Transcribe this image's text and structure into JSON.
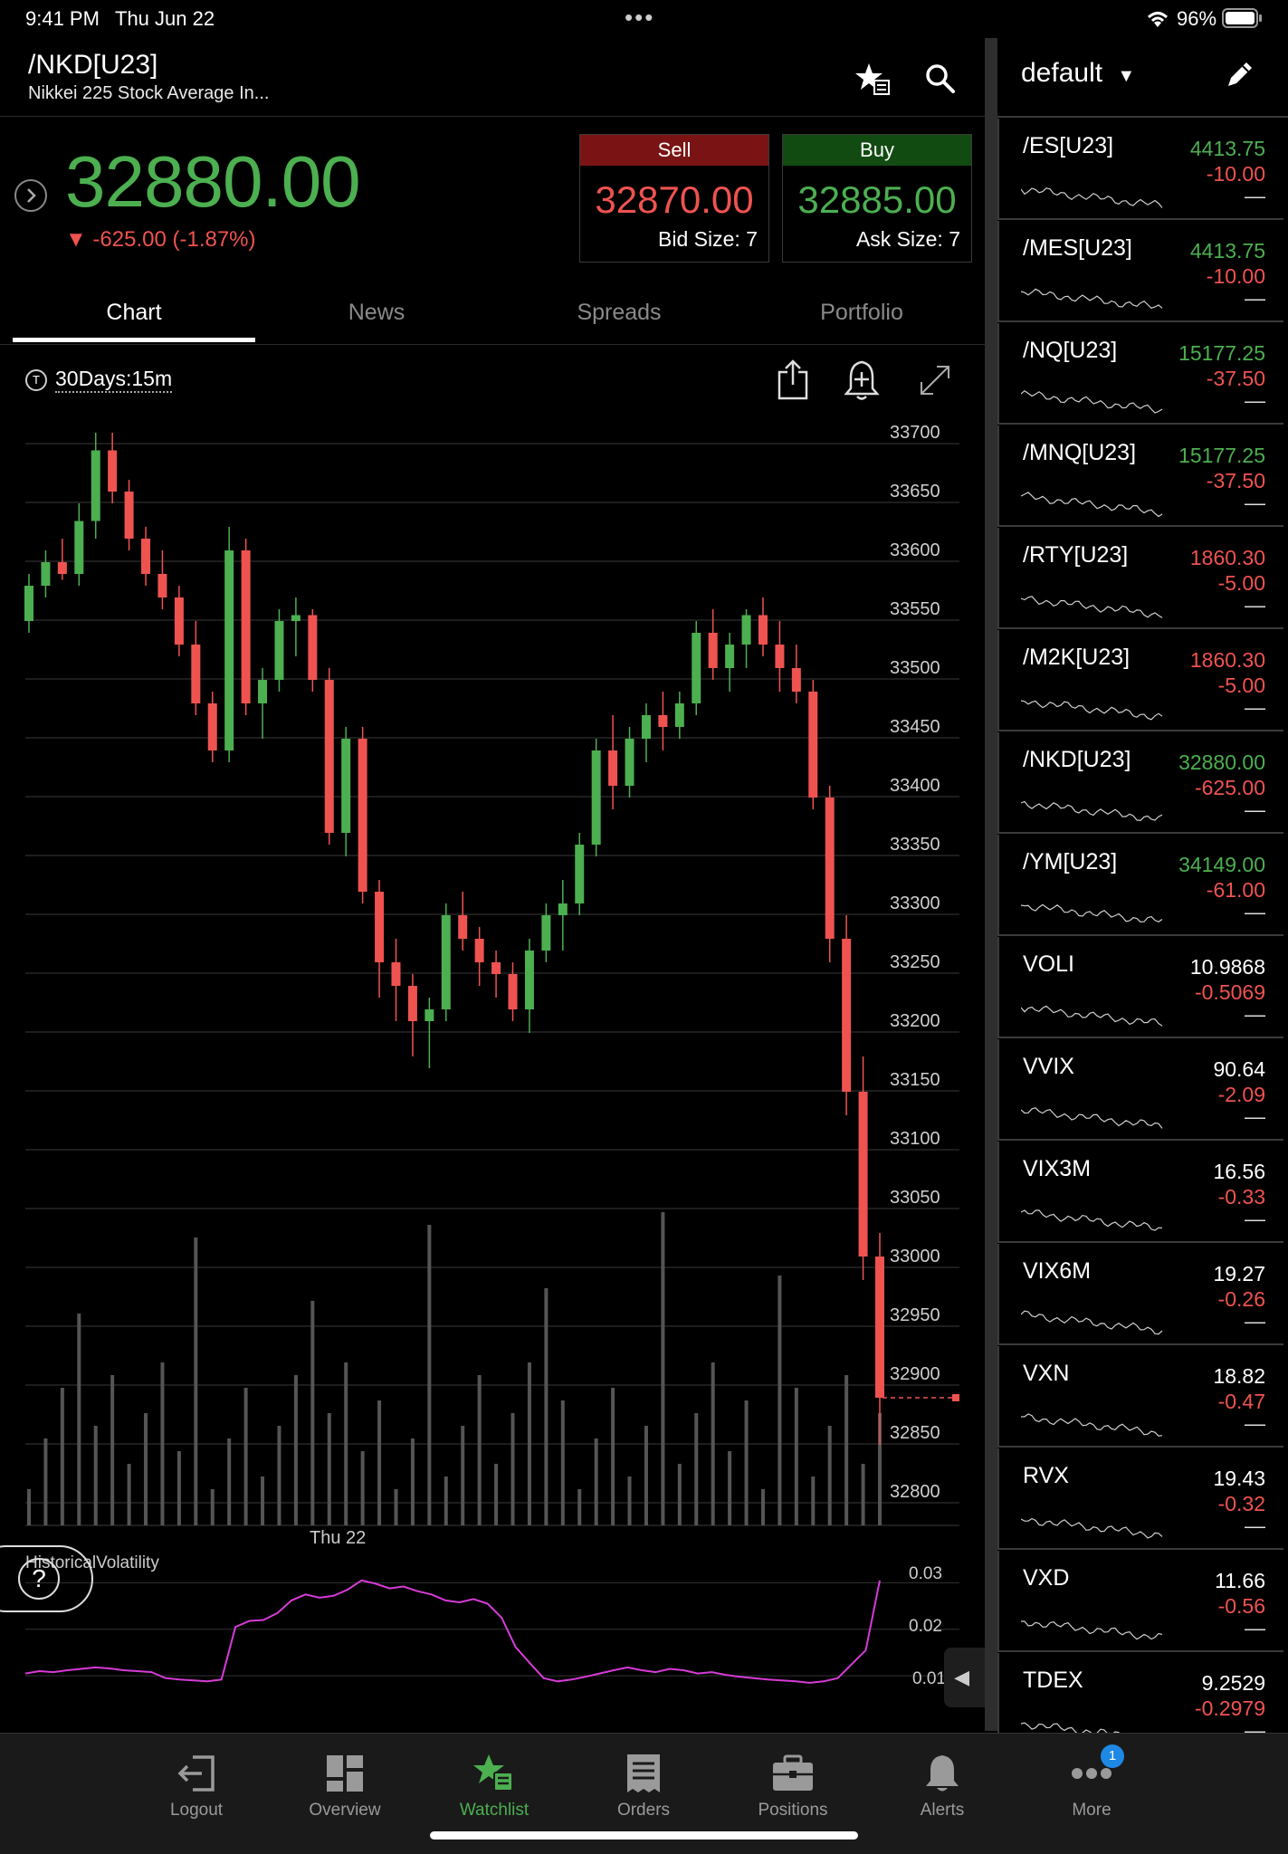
{
  "status_bar": {
    "time": "9:41 PM",
    "date": "Thu Jun 22",
    "battery": "96%"
  },
  "header": {
    "symbol": "/NKD[U23]",
    "description": "Nikkei 225 Stock Average In...",
    "icons": [
      "star-list-icon",
      "search-icon"
    ]
  },
  "quote": {
    "last": "32880.00",
    "change": "▼ -625.00 (-1.87%)",
    "sell": {
      "label": "Sell",
      "price": "32870.00",
      "size": "Bid Size: 7"
    },
    "buy": {
      "label": "Buy",
      "price": "32885.00",
      "size": "Ask Size: 7"
    }
  },
  "tabs": [
    {
      "label": "Chart",
      "active": true
    },
    {
      "label": "News",
      "active": false
    },
    {
      "label": "Spreads",
      "active": false
    },
    {
      "label": "Portfolio",
      "active": false
    }
  ],
  "chart_header": {
    "range": "30Days:15m",
    "range_icon_letter": "T"
  },
  "chart_data": {
    "type": "candlestick",
    "price_axis_ticks": [
      33700,
      33650,
      33600,
      33550,
      33500,
      33450,
      33400,
      33350,
      33300,
      33250,
      33200,
      33150,
      33100,
      33050,
      33000,
      32950,
      32900,
      32850,
      32800
    ],
    "ylim": [
      32780,
      33720
    ],
    "x_tick_label": "Thu 22",
    "last_price_marker": 32880,
    "candles": [
      [
        33540,
        33580,
        33530,
        33570
      ],
      [
        33570,
        33600,
        33560,
        33590
      ],
      [
        33590,
        33610,
        33575,
        33580
      ],
      [
        33580,
        33640,
        33570,
        33625
      ],
      [
        33625,
        33700,
        33610,
        33685
      ],
      [
        33685,
        33700,
        33640,
        33650
      ],
      [
        33650,
        33660,
        33600,
        33610
      ],
      [
        33610,
        33620,
        33570,
        33580
      ],
      [
        33580,
        33600,
        33550,
        33560
      ],
      [
        33560,
        33570,
        33510,
        33520
      ],
      [
        33520,
        33540,
        33460,
        33470
      ],
      [
        33470,
        33480,
        33420,
        33430
      ],
      [
        33430,
        33620,
        33420,
        33600
      ],
      [
        33600,
        33610,
        33460,
        33470
      ],
      [
        33470,
        33500,
        33440,
        33490
      ],
      [
        33490,
        33550,
        33480,
        33540
      ],
      [
        33540,
        33560,
        33510,
        33545
      ],
      [
        33545,
        33550,
        33480,
        33490
      ],
      [
        33490,
        33500,
        33350,
        33360
      ],
      [
        33360,
        33450,
        33340,
        33440
      ],
      [
        33440,
        33450,
        33300,
        33310
      ],
      [
        33310,
        33320,
        33220,
        33250
      ],
      [
        33250,
        33270,
        33200,
        33230
      ],
      [
        33230,
        33240,
        33170,
        33200
      ],
      [
        33200,
        33220,
        33160,
        33210
      ],
      [
        33210,
        33300,
        33200,
        33290
      ],
      [
        33290,
        33310,
        33260,
        33270
      ],
      [
        33270,
        33280,
        33230,
        33250
      ],
      [
        33250,
        33260,
        33220,
        33240
      ],
      [
        33240,
        33250,
        33200,
        33210
      ],
      [
        33210,
        33270,
        33190,
        33260
      ],
      [
        33260,
        33300,
        33250,
        33290
      ],
      [
        33290,
        33320,
        33260,
        33300
      ],
      [
        33300,
        33360,
        33290,
        33350
      ],
      [
        33350,
        33440,
        33340,
        33430
      ],
      [
        33430,
        33460,
        33380,
        33400
      ],
      [
        33400,
        33450,
        33390,
        33440
      ],
      [
        33440,
        33470,
        33420,
        33460
      ],
      [
        33460,
        33480,
        33430,
        33450
      ],
      [
        33450,
        33480,
        33440,
        33470
      ],
      [
        33470,
        33540,
        33460,
        33530
      ],
      [
        33530,
        33550,
        33490,
        33500
      ],
      [
        33500,
        33530,
        33480,
        33520
      ],
      [
        33520,
        33550,
        33500,
        33545
      ],
      [
        33545,
        33560,
        33510,
        33520
      ],
      [
        33520,
        33540,
        33480,
        33500
      ],
      [
        33500,
        33520,
        33470,
        33480
      ],
      [
        33480,
        33490,
        33380,
        33390
      ],
      [
        33390,
        33400,
        33250,
        33270
      ],
      [
        33270,
        33290,
        33120,
        33140
      ],
      [
        33140,
        33170,
        32980,
        33000
      ],
      [
        33000,
        33020,
        32840,
        32880
      ]
    ],
    "volume_note": "volume histogram",
    "indicator": {
      "name": "HistoricalVolatility",
      "ticks": [
        0.03,
        0.02,
        0.01
      ],
      "ylim": [
        0.004,
        0.033
      ],
      "values": [
        0.0105,
        0.011,
        0.0108,
        0.0112,
        0.0115,
        0.0118,
        0.0116,
        0.0112,
        0.011,
        0.0108,
        0.0095,
        0.0092,
        0.009,
        0.0088,
        0.0092,
        0.0205,
        0.0218,
        0.022,
        0.0235,
        0.0262,
        0.0275,
        0.0268,
        0.0272,
        0.0285,
        0.0305,
        0.0298,
        0.0288,
        0.0292,
        0.0282,
        0.0275,
        0.0262,
        0.0258,
        0.0265,
        0.0255,
        0.0225,
        0.0162,
        0.0128,
        0.0095,
        0.0088,
        0.0092,
        0.0098,
        0.0105,
        0.0112,
        0.0118,
        0.0112,
        0.0108,
        0.0115,
        0.0112,
        0.0105,
        0.0108,
        0.0102,
        0.0098,
        0.0095,
        0.0092,
        0.009,
        0.0088,
        0.0085,
        0.0088,
        0.0095,
        0.0125,
        0.0155,
        0.0305
      ]
    }
  },
  "watchlist": {
    "title": "default",
    "items": [
      {
        "symbol": "/ES[U23]",
        "price": "4413.75",
        "price_color": "#4caf50",
        "change": "-10.00",
        "change_color": "#ef5350"
      },
      {
        "symbol": "/MES[U23]",
        "price": "4413.75",
        "price_color": "#4caf50",
        "change": "-10.00",
        "change_color": "#ef5350"
      },
      {
        "symbol": "/NQ[U23]",
        "price": "15177.25",
        "price_color": "#4caf50",
        "change": "-37.50",
        "change_color": "#ef5350"
      },
      {
        "symbol": "/MNQ[U23]",
        "price": "15177.25",
        "price_color": "#4caf50",
        "change": "-37.50",
        "change_color": "#ef5350"
      },
      {
        "symbol": "/RTY[U23]",
        "price": "1860.30",
        "price_color": "#ef5350",
        "change": "-5.00",
        "change_color": "#ef5350"
      },
      {
        "symbol": "/M2K[U23]",
        "price": "1860.30",
        "price_color": "#ef5350",
        "change": "-5.00",
        "change_color": "#ef5350"
      },
      {
        "symbol": "/NKD[U23]",
        "price": "32880.00",
        "price_color": "#4caf50",
        "change": "-625.00",
        "change_color": "#ef5350"
      },
      {
        "symbol": "/YM[U23]",
        "price": "34149.00",
        "price_color": "#4caf50",
        "change": "-61.00",
        "change_color": "#ef5350"
      },
      {
        "symbol": "VOLI",
        "price": "10.9868",
        "price_color": "#ffffff",
        "change": "-0.5069",
        "change_color": "#ef5350"
      },
      {
        "symbol": "VVIX",
        "price": "90.64",
        "price_color": "#ffffff",
        "change": "-2.09",
        "change_color": "#ef5350"
      },
      {
        "symbol": "VIX3M",
        "price": "16.56",
        "price_color": "#ffffff",
        "change": "-0.33",
        "change_color": "#ef5350"
      },
      {
        "symbol": "VIX6M",
        "price": "19.27",
        "price_color": "#ffffff",
        "change": "-0.26",
        "change_color": "#ef5350"
      },
      {
        "symbol": "VXN",
        "price": "18.82",
        "price_color": "#ffffff",
        "change": "-0.47",
        "change_color": "#ef5350"
      },
      {
        "symbol": "RVX",
        "price": "19.43",
        "price_color": "#ffffff",
        "change": "-0.32",
        "change_color": "#ef5350"
      },
      {
        "symbol": "VXD",
        "price": "11.66",
        "price_color": "#ffffff",
        "change": "-0.56",
        "change_color": "#ef5350"
      },
      {
        "symbol": "TDEX",
        "price": "9.2529",
        "price_color": "#ffffff",
        "change": "-0.2979",
        "change_color": "#ef5350"
      }
    ],
    "dash": "—"
  },
  "navbar": [
    {
      "label": "Logout",
      "icon": "logout-icon",
      "active": false
    },
    {
      "label": "Overview",
      "icon": "overview-icon",
      "active": false
    },
    {
      "label": "Watchlist",
      "icon": "watchlist-icon",
      "active": true
    },
    {
      "label": "Orders",
      "icon": "orders-icon",
      "active": false
    },
    {
      "label": "Positions",
      "icon": "positions-icon",
      "active": false
    },
    {
      "label": "Alerts",
      "icon": "bell-icon",
      "active": false
    },
    {
      "label": "More",
      "icon": "more-icon",
      "active": false,
      "badge": "1"
    }
  ],
  "colors": {
    "up": "#4caf50",
    "down": "#ef5350",
    "indicator": "#d63bd6",
    "sell_head": "#7a1414",
    "buy_head": "#124b12"
  }
}
